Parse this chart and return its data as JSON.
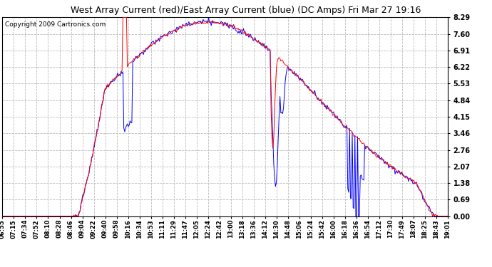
{
  "title": "West Array Current (red)/East Array Current (blue) (DC Amps) Fri Mar 27 19:16",
  "copyright": "Copyright 2009 Cartronics.com",
  "y_ticks": [
    0.0,
    0.69,
    1.38,
    2.07,
    2.76,
    3.46,
    4.15,
    4.84,
    5.53,
    6.22,
    6.91,
    7.6,
    8.29
  ],
  "ylim": [
    0.0,
    8.29
  ],
  "x_labels": [
    "06:55",
    "07:15",
    "07:34",
    "07:52",
    "08:10",
    "08:28",
    "08:46",
    "09:04",
    "09:22",
    "09:40",
    "09:58",
    "10:16",
    "10:34",
    "10:53",
    "11:11",
    "11:29",
    "11:47",
    "12:05",
    "12:24",
    "12:42",
    "13:00",
    "13:18",
    "13:36",
    "14:12",
    "14:30",
    "14:48",
    "15:06",
    "15:24",
    "15:42",
    "16:00",
    "16:18",
    "16:36",
    "16:54",
    "17:12",
    "17:30",
    "17:49",
    "18:07",
    "18:25",
    "18:43",
    "19:01"
  ],
  "background_color": "#ffffff",
  "plot_bg_color": "#ffffff",
  "grid_color": "#bbbbbb",
  "red_color": "#ff0000",
  "blue_color": "#0000ff",
  "title_fontsize": 9,
  "copyright_fontsize": 6.5
}
